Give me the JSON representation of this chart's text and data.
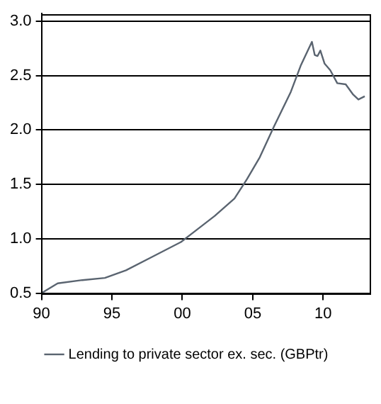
{
  "chart_data": {
    "type": "line",
    "x": [
      1990,
      1991.15,
      1992.9,
      1994.5,
      1996.0,
      1997.8,
      1999.9,
      2000.9,
      2002.3,
      2003.7,
      2004.6,
      2005.5,
      2006.5,
      2007.7,
      2008.4,
      2009.2,
      2009.4,
      2009.6,
      2009.8,
      2010.1,
      2010.5,
      2011.0,
      2011.6,
      2012.1,
      2012.5,
      2012.95
    ],
    "series": [
      {
        "name": "Lending to private sector ex. sec. (GBPtr)",
        "color": "#5a6470",
        "values": [
          0.5,
          0.59,
          0.62,
          0.64,
          0.71,
          0.83,
          0.97,
          1.07,
          1.21,
          1.37,
          1.55,
          1.75,
          2.03,
          2.35,
          2.59,
          2.81,
          2.69,
          2.68,
          2.73,
          2.61,
          2.55,
          2.43,
          2.42,
          2.33,
          2.28,
          2.31
        ]
      }
    ],
    "xlim": [
      1990,
      2013.3
    ],
    "xticks": [
      {
        "value": 1990,
        "label": "90"
      },
      {
        "value": 1995,
        "label": "95"
      },
      {
        "value": 2000,
        "label": "00"
      },
      {
        "value": 2005,
        "label": "05"
      },
      {
        "value": 2010,
        "label": "10"
      }
    ],
    "ylim": [
      0.5,
      3.07
    ],
    "yticks": [
      {
        "value": 0.5,
        "label": "0.5"
      },
      {
        "value": 1.0,
        "label": "1.0"
      },
      {
        "value": 1.5,
        "label": "1.5"
      },
      {
        "value": 2.0,
        "label": "2.0"
      },
      {
        "value": 2.5,
        "label": "2.5"
      },
      {
        "value": 3.0,
        "label": "3.0"
      }
    ],
    "grid": "y",
    "legend": "bottom",
    "marker": "none",
    "line_style": "solid"
  }
}
